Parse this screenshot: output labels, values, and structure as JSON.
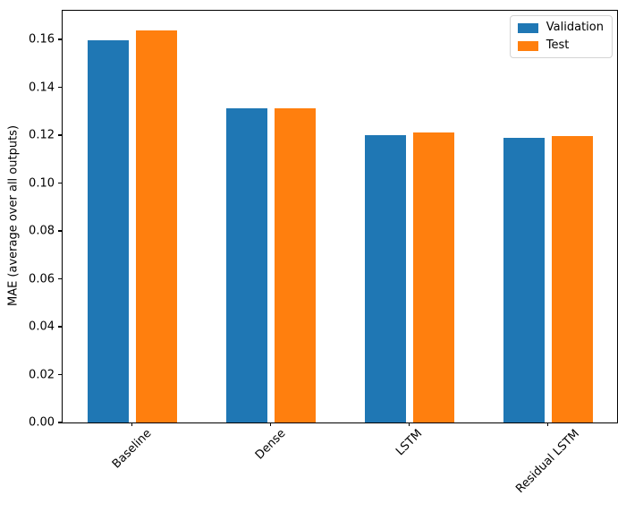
{
  "chart_data": {
    "type": "bar",
    "title": "",
    "xlabel": "",
    "ylabel": "MAE (average over all outputs)",
    "categories": [
      "Baseline",
      "Dense",
      "LSTM",
      "Residual LSTM"
    ],
    "series": [
      {
        "name": "Validation",
        "color": "#1f77b4",
        "values": [
          0.1595,
          0.1313,
          0.1202,
          0.1188
        ]
      },
      {
        "name": "Test",
        "color": "#ff7f0e",
        "values": [
          0.1639,
          0.1312,
          0.121,
          0.1197
        ]
      }
    ],
    "ylim": [
      0,
      0.172
    ],
    "yticks": [
      0.0,
      0.02,
      0.04,
      0.06,
      0.08,
      0.1,
      0.12,
      0.14,
      0.16
    ],
    "ytick_labels": [
      "0.00",
      "0.02",
      "0.04",
      "0.06",
      "0.08",
      "0.10",
      "0.12",
      "0.14",
      "0.16"
    ],
    "xtick_rotation_deg": 45,
    "grid": false,
    "legend_position": "upper right",
    "plot_background": "#ffffff",
    "spine_color": "#000000"
  }
}
